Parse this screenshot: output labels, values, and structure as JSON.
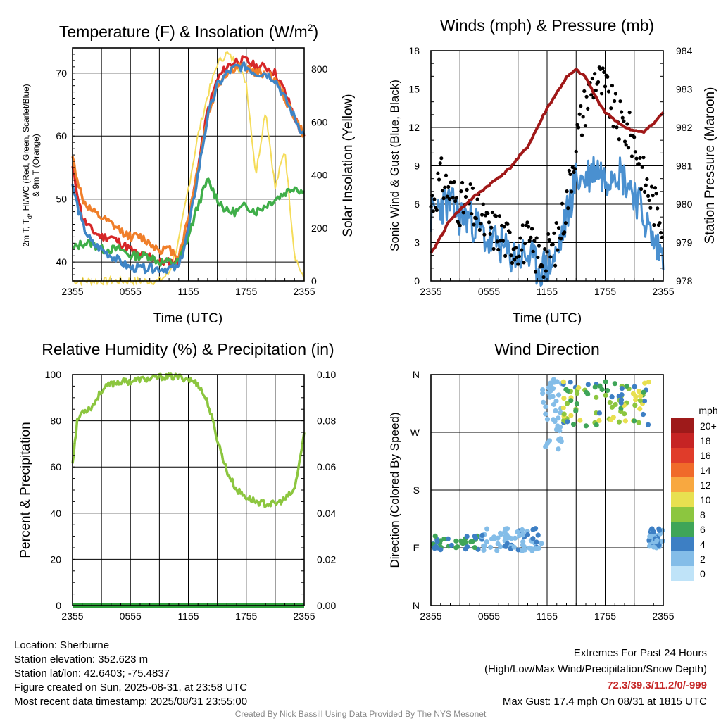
{
  "chart_data": [
    {
      "type": "line",
      "title": "Temperature (F) & Insolation (W/m",
      "title_sup": "2",
      "title_suffix": ")",
      "xlabel": "Time (UTC)",
      "ylabel_line1": "2m T, T",
      "ylabel_sub": "d",
      "ylabel_line1b": ", HI/WC (Red, Green, Scarlet/Blue)",
      "ylabel_line2": "& 9m T (Orange)",
      "ylabel_right": "Solar Insolation (Yellow)",
      "x_ticks": [
        "2355",
        "0555",
        "1155",
        "1755",
        "2355"
      ],
      "ylim": [
        37,
        74
      ],
      "y_ticks": [
        40,
        50,
        60,
        70
      ],
      "ylim_right": [
        0,
        880
      ],
      "y_ticks_right": [
        0,
        200,
        400,
        600,
        800
      ],
      "series": [
        {
          "color": "#d62728",
          "x": [
            0,
            1,
            2,
            3,
            4,
            5,
            6,
            7,
            8,
            9,
            10,
            11,
            12,
            13,
            14,
            15,
            16,
            17,
            18,
            19,
            20,
            21,
            22,
            23,
            24
          ],
          "values": [
            55,
            47,
            45,
            44,
            44,
            43,
            42,
            41,
            41,
            40,
            40,
            40,
            46,
            55,
            64,
            69,
            71,
            72,
            72,
            71,
            71,
            70,
            67,
            63,
            59.5
          ]
        },
        {
          "color": "#f07f2a",
          "x": [
            0,
            1,
            2,
            3,
            4,
            5,
            6,
            7,
            8,
            9,
            10,
            11,
            12,
            13,
            14,
            15,
            16,
            17,
            18,
            19,
            20,
            21,
            22,
            23,
            24
          ],
          "values": [
            56.5,
            50,
            48,
            47,
            46,
            45,
            44,
            44,
            43,
            42,
            42,
            41,
            47,
            55,
            63,
            68,
            70,
            71,
            71,
            70,
            70,
            69,
            66,
            63,
            60
          ]
        },
        {
          "color": "#3fae49",
          "x": [
            0,
            1,
            2,
            3,
            4,
            5,
            6,
            7,
            8,
            9,
            10,
            11,
            12,
            13,
            14,
            15,
            16,
            17,
            18,
            19,
            20,
            21,
            22,
            23,
            24
          ],
          "values": [
            42,
            43,
            43,
            42,
            42,
            42,
            41,
            41,
            41,
            40,
            40,
            40,
            44,
            49,
            53,
            50,
            48,
            48,
            49,
            48,
            49,
            50,
            51,
            52,
            51
          ]
        },
        {
          "color": "#3e85c6",
          "x": [
            0,
            1,
            2,
            3,
            4,
            5,
            6,
            7,
            8,
            9,
            10,
            11,
            12,
            13,
            14,
            15,
            16,
            17,
            18,
            19,
            20,
            21,
            22,
            23,
            24
          ],
          "values": [
            52,
            46,
            43,
            42,
            41,
            40,
            39,
            39,
            39,
            39,
            39,
            39,
            45,
            54,
            63,
            68,
            70,
            71,
            71,
            70,
            70,
            69,
            66,
            63,
            60
          ]
        }
      ],
      "insolation": {
        "color": "#f5dc5a",
        "x": [
          0,
          9,
          10,
          11,
          12,
          13,
          14,
          15,
          16,
          17,
          18,
          19,
          20,
          21,
          22,
          23,
          24
        ],
        "values": [
          0,
          0,
          30,
          150,
          350,
          550,
          700,
          820,
          860,
          820,
          750,
          400,
          650,
          350,
          500,
          100,
          0
        ]
      }
    },
    {
      "type": "line",
      "title": "Winds (mph) & Pressure (mb)",
      "xlabel": "Time (UTC)",
      "ylabel": "Sonic Wind & Gust (Blue, Black)",
      "ylabel_right": "Station Pressure (Maroon)",
      "x_ticks": [
        "2355",
        "0555",
        "1155",
        "1755",
        "2355"
      ],
      "ylim": [
        0,
        18
      ],
      "y_ticks": [
        0,
        3,
        6,
        9,
        12,
        15,
        18
      ],
      "ylim_right": [
        978,
        984
      ],
      "y_ticks_right": [
        978,
        979,
        980,
        981,
        982,
        983,
        984
      ],
      "wind": {
        "color": "#4a90d0",
        "x": [
          0,
          1,
          2,
          3,
          4,
          5,
          6,
          7,
          8,
          9,
          10,
          11,
          12,
          13,
          14,
          15,
          16,
          17,
          18,
          19,
          20,
          21,
          22,
          23,
          24
        ],
        "values": [
          5,
          6,
          6,
          5,
          5,
          4,
          3,
          3,
          2,
          2,
          2,
          1,
          1,
          2,
          5,
          8,
          8,
          9,
          8,
          9,
          8,
          7,
          5,
          3,
          2
        ]
      },
      "gust": {
        "color": "#000000",
        "x": [
          0,
          1,
          2,
          3,
          4,
          5,
          6,
          7,
          8,
          9,
          10,
          11,
          12,
          13,
          14,
          15,
          16,
          17,
          18,
          19,
          20,
          21,
          22,
          23,
          24
        ],
        "values": [
          6,
          8,
          7,
          6,
          6,
          5,
          4,
          4,
          3,
          3,
          3,
          2,
          2,
          3,
          6,
          11,
          14,
          16,
          15,
          13,
          12,
          11,
          8,
          6,
          5
        ]
      },
      "pressure": {
        "color": "#a01818",
        "x": [
          0,
          2,
          4,
          6,
          8,
          10,
          12,
          14,
          15,
          16,
          17,
          18,
          19,
          20,
          21,
          22,
          23,
          24
        ],
        "values": [
          978.7,
          979.6,
          980.1,
          980.5,
          980.9,
          981.5,
          982.5,
          983.3,
          983.5,
          983.3,
          982.8,
          982.4,
          982.2,
          982.0,
          981.9,
          981.9,
          982.1,
          982.4
        ]
      }
    },
    {
      "type": "line",
      "title": "Relative Humidity (%) & Precipitation (in)",
      "ylabel": "Percent & Precipitation",
      "x_ticks": [
        "2355",
        "0555",
        "1155",
        "1755",
        "2355"
      ],
      "ylim": [
        0,
        100
      ],
      "y_ticks": [
        0,
        20,
        40,
        60,
        80,
        100
      ],
      "ylim_right": [
        0,
        0.1
      ],
      "y_ticks_right": [
        "0.00",
        "0.02",
        "0.04",
        "0.06",
        "0.08",
        "0.10"
      ],
      "rh": {
        "color": "#8cc63f",
        "x": [
          0,
          0.5,
          1,
          2,
          3,
          4,
          5,
          6,
          7,
          8,
          9,
          10,
          11,
          12,
          13,
          14,
          15,
          16,
          17,
          18,
          19,
          20,
          21,
          22,
          23,
          24
        ],
        "values": [
          62,
          80,
          84,
          86,
          93,
          96,
          97,
          97,
          98,
          98,
          99,
          99,
          99,
          98,
          96,
          88,
          72,
          58,
          50,
          47,
          45,
          44,
          44,
          46,
          50,
          74
        ]
      },
      "precip": {
        "color": "#2e9e3a",
        "x": [
          0,
          24
        ],
        "values": [
          0,
          0
        ]
      }
    },
    {
      "type": "scatter",
      "title": "Wind Direction",
      "ylabel": "Direction (Colored By Speed)",
      "x_ticks": [
        "2355",
        "0555",
        "1155",
        "1755",
        "2355"
      ],
      "y_ticks": [
        "N",
        "E",
        "S",
        "W",
        "N"
      ],
      "colorbar_unit": "mph",
      "colorbar_labels": [
        "20+",
        "18",
        "16",
        "14",
        "12",
        "10",
        "8",
        "6",
        "4",
        "2",
        "0"
      ],
      "colorbar_colors": [
        "#9e1a1a",
        "#c62424",
        "#e03c2a",
        "#f06a2a",
        "#f8a840",
        "#e8e050",
        "#8cc63f",
        "#3fa558",
        "#3d7fc4",
        "#84bde8",
        "#bfe3f8"
      ],
      "segments": [
        {
          "x_range": [
            0.2,
            5.2
          ],
          "dir_range": [
            85,
            110
          ],
          "speed_range": [
            3,
            7
          ]
        },
        {
          "x_range": [
            5.2,
            11.5
          ],
          "dir_range": [
            85,
            120
          ],
          "speed_range": [
            1,
            4
          ]
        },
        {
          "x_range": [
            11.5,
            13.5
          ],
          "dir_range": [
            240,
            355
          ],
          "speed_range": [
            1,
            3
          ]
        },
        {
          "x_range": [
            13.5,
            22.5
          ],
          "dir_range": [
            280,
            350
          ],
          "speed_range": [
            4,
            11
          ]
        },
        {
          "x_range": [
            22.5,
            24
          ],
          "dir_range": [
            90,
            120
          ],
          "speed_range": [
            2,
            4
          ]
        }
      ]
    }
  ],
  "info": {
    "location": "Location: Sherburne",
    "elevation": "Station elevation: 352.623 m",
    "latlon": "Station lat/lon: 42.6403; -75.4837",
    "created": "Figure created on Sun, 2025-08-31, at 23:58 UTC",
    "recent": "Most recent data timestamp: 2025/08/31 23:55:00"
  },
  "extremes": {
    "line1": "Extremes For Past 24 Hours",
    "line2": "(High/Low/Max Wind/Precipitation/Snow Depth)",
    "values": "72.3/39.3/11.2/0/-999",
    "values_color": "#c62828",
    "gust": "Max Gust: 17.4 mph On 08/31 at 1815 UTC"
  },
  "credit": "Created By Nick Bassill Using Data Provided By The NYS Mesonet"
}
